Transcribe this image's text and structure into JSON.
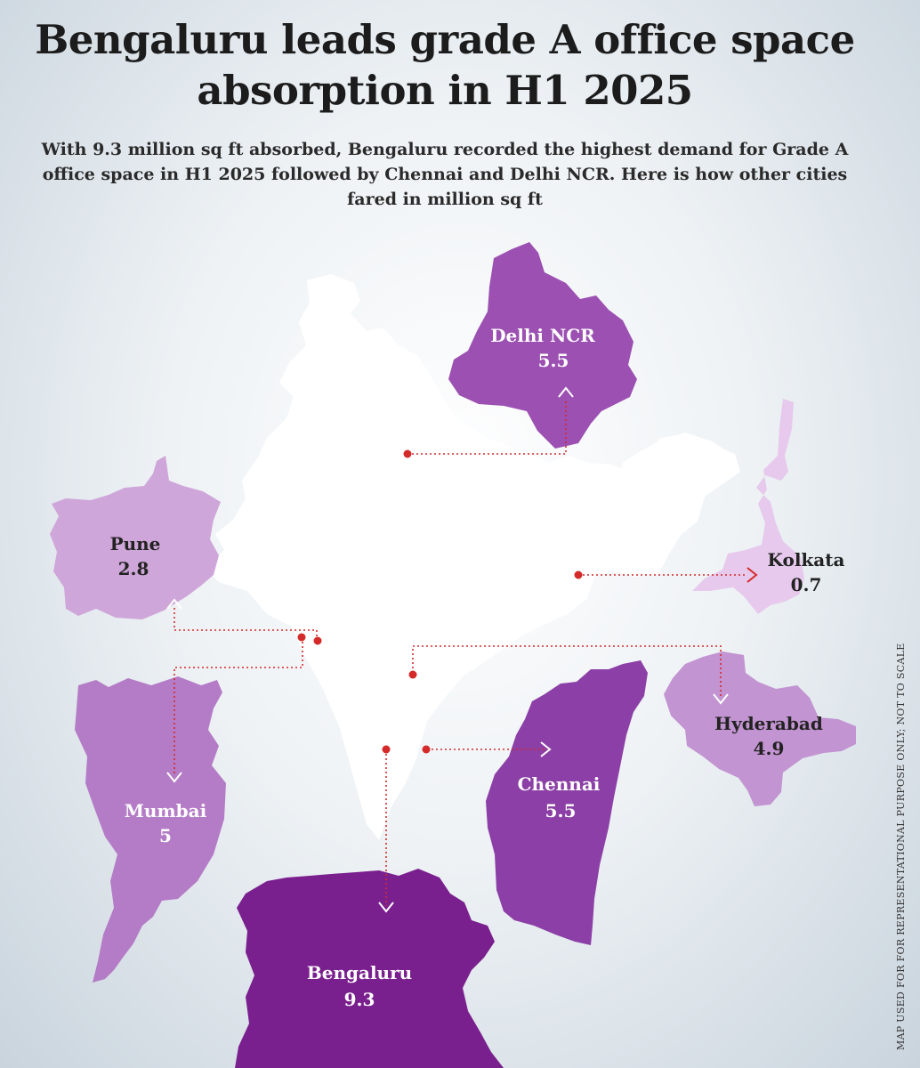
{
  "title": "Bengaluru leads grade A office space absorption in H1 2025",
  "subtitle": "With 9.3 million sq ft absorbed, Bengaluru recorded the highest demand for Grade A office space in H1 2025 followed by Chennai and Delhi NCR. Here is how other cities fared in million sq ft",
  "footnote": "MAP USED FOR FOR REPRESENTATIONAL PURPOSE ONLY; NOT TO SCALE",
  "colors": {
    "accent_dot": "#d42a2a",
    "label_light": "#ffffff",
    "label_dark": "#222222"
  },
  "cities": [
    {
      "name": "Delhi NCR",
      "value": "5.5",
      "fill": "#9b50b2"
    },
    {
      "name": "Pune",
      "value": "2.8",
      "fill": "#cfa6d9"
    },
    {
      "name": "Kolkata",
      "value": "0.7",
      "fill": "#e6c9ec"
    },
    {
      "name": "Mumbai",
      "value": "5",
      "fill": "#b47cc6"
    },
    {
      "name": "Hyderabad",
      "value": "4.9",
      "fill": "#c394d2"
    },
    {
      "name": "Chennai",
      "value": "5.5",
      "fill": "#8c3fa6"
    },
    {
      "name": "Bengaluru",
      "value": "9.3",
      "fill": "#7a1f8e"
    }
  ]
}
